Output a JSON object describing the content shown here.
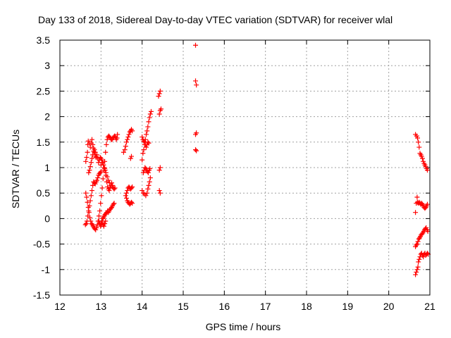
{
  "chart_data": {
    "type": "scatter",
    "title": "Day 133 of 2018, Sidereal Day-to-day VTEC variation (SDTVAR) for receiver wlal",
    "xlabel": "GPS time / hours",
    "ylabel": "SDTVAR / TECUs",
    "xlim": [
      12,
      21
    ],
    "ylim": [
      -1.5,
      3.5
    ],
    "xticks": [
      "12",
      "13",
      "14",
      "15",
      "16",
      "17",
      "18",
      "19",
      "20",
      "21"
    ],
    "yticks": [
      "3.5",
      "3",
      "2.5",
      "2",
      "1.5",
      "1",
      "0.5",
      "0",
      "-0.5",
      "-1",
      "-1.5"
    ],
    "grid": true,
    "marker": "+",
    "marker_color": "#ff0000",
    "points": [
      [
        12.63,
        1.12
      ],
      [
        12.65,
        1.2
      ],
      [
        12.67,
        1.3
      ],
      [
        12.68,
        1.45
      ],
      [
        12.69,
        1.52
      ],
      [
        12.72,
        1.48
      ],
      [
        12.74,
        1.4
      ],
      [
        12.76,
        1.48
      ],
      [
        12.78,
        1.55
      ],
      [
        12.8,
        1.45
      ],
      [
        12.82,
        1.38
      ],
      [
        12.84,
        1.3
      ],
      [
        12.86,
        1.25
      ],
      [
        12.88,
        1.2
      ],
      [
        12.9,
        1.25
      ],
      [
        12.92,
        1.18
      ],
      [
        12.94,
        1.1
      ],
      [
        12.96,
        1.15
      ],
      [
        12.98,
        1.2
      ],
      [
        13.0,
        1.18
      ],
      [
        13.02,
        1.15
      ],
      [
        13.04,
        1.1
      ],
      [
        13.06,
        1.05
      ],
      [
        13.08,
        1.0
      ],
      [
        13.1,
        0.95
      ],
      [
        13.12,
        0.85
      ],
      [
        13.14,
        0.72
      ],
      [
        13.16,
        0.62
      ],
      [
        13.18,
        0.58
      ],
      [
        13.2,
        0.55
      ],
      [
        13.22,
        0.6
      ],
      [
        13.24,
        0.65
      ],
      [
        13.26,
        0.7
      ],
      [
        13.28,
        0.65
      ],
      [
        13.3,
        0.6
      ],
      [
        13.32,
        0.58
      ],
      [
        13.34,
        0.6
      ],
      [
        12.63,
        0.5
      ],
      [
        12.65,
        0.42
      ],
      [
        12.67,
        0.32
      ],
      [
        12.69,
        0.22
      ],
      [
        12.71,
        0.12
      ],
      [
        12.73,
        0.02
      ],
      [
        12.75,
        -0.05
      ],
      [
        12.77,
        -0.1
      ],
      [
        12.79,
        -0.12
      ],
      [
        12.81,
        -0.15
      ],
      [
        12.83,
        -0.18
      ],
      [
        12.85,
        -0.2
      ],
      [
        12.87,
        -0.22
      ],
      [
        12.89,
        -0.18
      ],
      [
        12.91,
        -0.12
      ],
      [
        12.93,
        -0.05
      ],
      [
        12.95,
        0.05
      ],
      [
        12.97,
        0.15
      ],
      [
        12.99,
        0.3
      ],
      [
        13.01,
        0.45
      ],
      [
        13.03,
        0.6
      ],
      [
        13.05,
        0.78
      ],
      [
        13.07,
        0.95
      ],
      [
        13.09,
        1.12
      ],
      [
        13.11,
        1.3
      ],
      [
        13.13,
        1.45
      ],
      [
        13.15,
        1.55
      ],
      [
        13.17,
        1.6
      ],
      [
        13.19,
        1.62
      ],
      [
        13.21,
        1.6
      ],
      [
        13.23,
        1.58
      ],
      [
        13.25,
        1.55
      ],
      [
        13.27,
        1.55
      ],
      [
        13.29,
        1.58
      ],
      [
        13.31,
        1.6
      ],
      [
        13.33,
        1.62
      ],
      [
        13.35,
        1.6
      ],
      [
        13.37,
        1.55
      ],
      [
        13.39,
        1.58
      ],
      [
        13.4,
        1.65
      ],
      [
        12.62,
        -0.12
      ],
      [
        12.64,
        -0.1
      ],
      [
        12.66,
        -0.05
      ],
      [
        12.68,
        0.05
      ],
      [
        12.7,
        0.15
      ],
      [
        12.72,
        0.25
      ],
      [
        12.74,
        0.35
      ],
      [
        12.76,
        0.45
      ],
      [
        12.78,
        0.55
      ],
      [
        12.8,
        0.65
      ],
      [
        12.82,
        0.72
      ],
      [
        12.84,
        0.7
      ],
      [
        12.86,
        0.68
      ],
      [
        12.88,
        0.72
      ],
      [
        12.9,
        0.75
      ],
      [
        12.92,
        0.8
      ],
      [
        12.94,
        0.85
      ],
      [
        12.96,
        0.88
      ],
      [
        12.98,
        0.9
      ],
      [
        13.0,
        0.92
      ],
      [
        12.7,
        0.9
      ],
      [
        12.72,
        0.95
      ],
      [
        12.74,
        1.02
      ],
      [
        12.76,
        1.1
      ],
      [
        12.78,
        1.18
      ],
      [
        12.8,
        1.25
      ],
      [
        12.82,
        1.32
      ],
      [
        12.84,
        1.35
      ],
      [
        12.86,
        1.3
      ],
      [
        12.88,
        1.22
      ],
      [
        13.0,
        -0.1
      ],
      [
        13.02,
        -0.05
      ],
      [
        13.04,
        0.0
      ],
      [
        13.06,
        0.02
      ],
      [
        13.08,
        0.05
      ],
      [
        13.1,
        0.08
      ],
      [
        13.12,
        0.1
      ],
      [
        13.14,
        0.12
      ],
      [
        13.16,
        0.15
      ],
      [
        13.18,
        0.12
      ],
      [
        13.2,
        0.15
      ],
      [
        13.22,
        0.18
      ],
      [
        13.24,
        0.2
      ],
      [
        13.26,
        0.22
      ],
      [
        13.28,
        0.25
      ],
      [
        13.3,
        0.28
      ],
      [
        13.32,
        0.3
      ],
      [
        13.0,
        1.05
      ],
      [
        13.03,
        1.1
      ],
      [
        13.06,
        1.05
      ],
      [
        13.09,
        0.98
      ],
      [
        13.12,
        0.9
      ],
      [
        13.15,
        0.82
      ],
      [
        13.18,
        0.75
      ],
      [
        13.21,
        0.7
      ],
      [
        13.24,
        0.65
      ],
      [
        13.27,
        0.62
      ],
      [
        12.95,
        -0.05
      ],
      [
        12.97,
        -0.1
      ],
      [
        12.99,
        -0.15
      ],
      [
        13.01,
        -0.12
      ],
      [
        13.03,
        -0.08
      ],
      [
        13.05,
        -0.12
      ],
      [
        13.07,
        -0.15
      ],
      [
        13.09,
        -0.1
      ],
      [
        13.11,
        -0.05
      ],
      [
        13.55,
        1.3
      ],
      [
        13.58,
        1.35
      ],
      [
        13.6,
        1.42
      ],
      [
        13.62,
        1.5
      ],
      [
        13.64,
        1.55
      ],
      [
        13.66,
        1.6
      ],
      [
        13.68,
        1.65
      ],
      [
        13.7,
        1.7
      ],
      [
        13.72,
        1.72
      ],
      [
        13.74,
        1.75
      ],
      [
        13.76,
        1.72
      ],
      [
        13.6,
        0.45
      ],
      [
        13.62,
        0.4
      ],
      [
        13.64,
        0.35
      ],
      [
        13.66,
        0.32
      ],
      [
        13.68,
        0.3
      ],
      [
        13.7,
        0.28
      ],
      [
        13.72,
        0.3
      ],
      [
        13.74,
        0.32
      ],
      [
        13.76,
        0.3
      ],
      [
        13.62,
        0.5
      ],
      [
        13.64,
        0.55
      ],
      [
        13.66,
        0.6
      ],
      [
        13.68,
        0.62
      ],
      [
        13.7,
        0.6
      ],
      [
        13.72,
        0.58
      ],
      [
        13.74,
        0.6
      ],
      [
        13.76,
        0.62
      ],
      [
        13.72,
        1.18
      ],
      [
        13.74,
        1.22
      ],
      [
        14.0,
        1.15
      ],
      [
        14.02,
        1.28
      ],
      [
        14.04,
        1.35
      ],
      [
        14.06,
        1.45
      ],
      [
        14.08,
        1.55
      ],
      [
        14.1,
        1.65
      ],
      [
        14.12,
        1.72
      ],
      [
        14.14,
        1.8
      ],
      [
        14.16,
        1.9
      ],
      [
        14.18,
        1.98
      ],
      [
        14.2,
        2.05
      ],
      [
        14.22,
        2.1
      ],
      [
        14.0,
        1.6
      ],
      [
        14.02,
        1.55
      ],
      [
        14.04,
        1.52
      ],
      [
        14.06,
        1.5
      ],
      [
        14.08,
        1.45
      ],
      [
        14.1,
        1.4
      ],
      [
        14.12,
        1.45
      ],
      [
        14.14,
        1.5
      ],
      [
        14.16,
        1.48
      ],
      [
        14.03,
        0.9
      ],
      [
        14.05,
        0.95
      ],
      [
        14.07,
        1.0
      ],
      [
        14.09,
        0.98
      ],
      [
        14.11,
        0.95
      ],
      [
        14.13,
        0.92
      ],
      [
        14.15,
        0.9
      ],
      [
        14.17,
        0.95
      ],
      [
        14.19,
        0.98
      ],
      [
        14.0,
        0.55
      ],
      [
        14.03,
        0.5
      ],
      [
        14.06,
        0.48
      ],
      [
        14.09,
        0.45
      ],
      [
        14.12,
        0.5
      ],
      [
        14.14,
        0.58
      ],
      [
        14.16,
        0.65
      ],
      [
        14.18,
        0.72
      ],
      [
        14.2,
        0.8
      ],
      [
        14.4,
        2.4
      ],
      [
        14.42,
        2.45
      ],
      [
        14.44,
        2.5
      ],
      [
        14.42,
        2.05
      ],
      [
        14.44,
        2.12
      ],
      [
        14.46,
        2.15
      ],
      [
        14.42,
        0.95
      ],
      [
        14.44,
        1.0
      ],
      [
        14.42,
        0.55
      ],
      [
        14.44,
        0.5
      ],
      [
        15.3,
        3.4
      ],
      [
        15.3,
        2.7
      ],
      [
        15.32,
        2.62
      ],
      [
        15.3,
        1.65
      ],
      [
        15.32,
        1.68
      ],
      [
        15.3,
        1.35
      ],
      [
        15.32,
        1.33
      ],
      [
        20.65,
        1.65
      ],
      [
        20.68,
        1.62
      ],
      [
        20.7,
        1.58
      ],
      [
        20.72,
        1.5
      ],
      [
        20.74,
        1.4
      ],
      [
        20.76,
        1.28
      ],
      [
        20.78,
        1.25
      ],
      [
        20.8,
        1.22
      ],
      [
        20.82,
        1.18
      ],
      [
        20.84,
        1.12
      ],
      [
        20.86,
        1.08
      ],
      [
        20.88,
        1.05
      ],
      [
        20.9,
        1.02
      ],
      [
        20.92,
        0.98
      ],
      [
        20.94,
        0.95
      ],
      [
        20.65,
        0.12
      ],
      [
        20.67,
        0.3
      ],
      [
        20.69,
        0.42
      ],
      [
        20.7,
        0.32
      ],
      [
        20.72,
        0.3
      ],
      [
        20.74,
        0.32
      ],
      [
        20.76,
        0.3
      ],
      [
        20.78,
        0.28
      ],
      [
        20.8,
        0.3
      ],
      [
        20.82,
        0.28
      ],
      [
        20.84,
        0.25
      ],
      [
        20.86,
        0.22
      ],
      [
        20.88,
        0.2
      ],
      [
        20.9,
        0.22
      ],
      [
        20.92,
        0.25
      ],
      [
        20.94,
        0.28
      ],
      [
        20.65,
        -0.55
      ],
      [
        20.67,
        -0.52
      ],
      [
        20.69,
        -0.5
      ],
      [
        20.71,
        -0.45
      ],
      [
        20.73,
        -0.4
      ],
      [
        20.75,
        -0.38
      ],
      [
        20.77,
        -0.35
      ],
      [
        20.79,
        -0.32
      ],
      [
        20.81,
        -0.3
      ],
      [
        20.83,
        -0.28
      ],
      [
        20.85,
        -0.25
      ],
      [
        20.87,
        -0.22
      ],
      [
        20.89,
        -0.2
      ],
      [
        20.91,
        -0.18
      ],
      [
        20.93,
        -0.22
      ],
      [
        20.95,
        -0.25
      ],
      [
        20.65,
        -1.1
      ],
      [
        20.67,
        -1.05
      ],
      [
        20.69,
        -1.0
      ],
      [
        20.71,
        -0.95
      ],
      [
        20.72,
        -0.85
      ],
      [
        20.74,
        -0.8
      ],
      [
        20.76,
        -0.75
      ],
      [
        20.78,
        -0.7
      ],
      [
        20.8,
        -0.68
      ],
      [
        20.82,
        -0.72
      ],
      [
        20.84,
        -0.75
      ],
      [
        20.86,
        -0.7
      ],
      [
        20.88,
        -0.68
      ],
      [
        20.9,
        -0.72
      ],
      [
        20.92,
        -0.7
      ],
      [
        20.94,
        -0.68
      ],
      [
        20.96,
        -0.7
      ]
    ]
  }
}
